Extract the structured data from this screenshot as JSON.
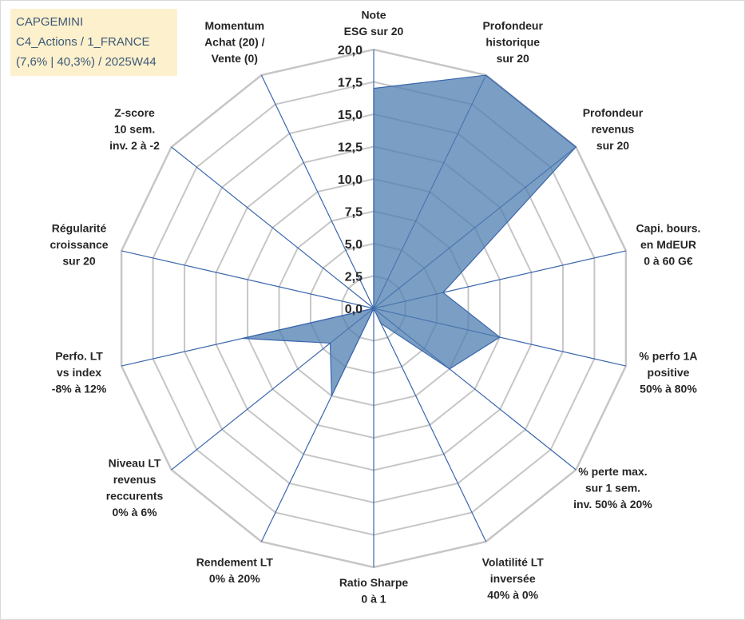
{
  "info": {
    "line1": "CAPGEMINI",
    "line2": "C4_Actions / 1_FRANCE",
    "line3": "(7,6% | 40,3%) / 2025W44"
  },
  "colors": {
    "fill": "#4f7db0",
    "fill_opacity": 0.75,
    "series_line": "#3a66ad",
    "spoke": "#3a66ad",
    "ring": "#c6c6c6",
    "info_bg": "#fdf0cc",
    "info_text": "#3c5a78"
  },
  "chart_data": {
    "type": "radar",
    "rmin": 0,
    "rmax": 20,
    "ticks": [
      "0,0",
      "2,5",
      "5,0",
      "7,5",
      "10,0",
      "12,5",
      "15,0",
      "17,5",
      "20,0"
    ],
    "grid": true,
    "axes": [
      {
        "lines": [
          "Note",
          "ESG sur 20"
        ],
        "value": 17
      },
      {
        "lines": [
          "Profondeur",
          "historique",
          "sur 20"
        ],
        "value": 20
      },
      {
        "lines": [
          "Profondeur",
          "revenus",
          "sur 20"
        ],
        "value": 20
      },
      {
        "lines": [
          "Capi. bours.",
          "en MdEUR",
          "0 à 60 G€"
        ],
        "value": 5.5
      },
      {
        "lines": [
          "% perfo 1A",
          "positive",
          "50% à 80%"
        ],
        "value": 10
      },
      {
        "lines": [
          "% perte max.",
          "sur 1 sem.",
          "inv. 50% à 20%"
        ],
        "value": 7.5
      },
      {
        "lines": [
          "Volatilité LT",
          "inversée",
          "40% à 0%"
        ],
        "value": 1.3
      },
      {
        "lines": [
          "Ratio Sharpe",
          "0 à 1"
        ],
        "value": 0
      },
      {
        "lines": [
          "Rendement LT",
          "0% à 20%"
        ],
        "value": 7.5
      },
      {
        "lines": [
          "Niveau LT",
          "revenus",
          "reccurents",
          "0% à 6%"
        ],
        "value": 4.3
      },
      {
        "lines": [
          "Perfo. LT",
          "vs index",
          "-8% à 12%"
        ],
        "value": 10.4
      },
      {
        "lines": [
          "Régularité",
          "croissance",
          "sur 20"
        ],
        "value": 0
      },
      {
        "lines": [
          "Z-score",
          "10 sem.",
          "inv. 2 à -2"
        ],
        "value": 0
      },
      {
        "lines": [
          "Momentum",
          "Achat (20) /",
          "Vente (0)"
        ],
        "value": 0
      }
    ]
  }
}
